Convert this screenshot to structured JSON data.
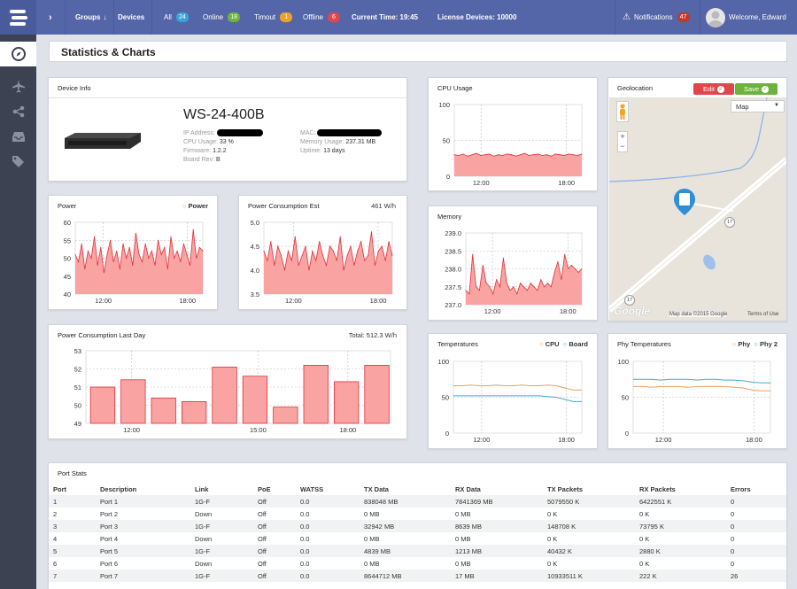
{
  "topbar": {
    "groups": "Groups",
    "devices": "Devices",
    "all_label": "All",
    "all_count": "24",
    "online_label": "Online",
    "online_count": "18",
    "timeout_label": "Timout",
    "timeout_count": "1",
    "offline_label": "Offline",
    "offline_count": "6",
    "current_time": "Current Time: 19:45",
    "license": "License Devices: 10000",
    "notifications_label": "Notifications",
    "notifications_count": "47",
    "welcome": "Welcome, Edward"
  },
  "page_title": "Statistics & Charts",
  "device_info": {
    "title": "Device Info",
    "model": "WS-24-400B",
    "ip_label": "IP Address:",
    "cpu_label": "CPU Usage:",
    "cpu_value": "33 %",
    "firmware_label": "Firmware:",
    "firmware_value": "1.2.2",
    "board_label": "Board Rev:",
    "board_value": "B",
    "mac_label": "MAC:",
    "memory_label": "Memory Usage:",
    "memory_value": "237.31 MB",
    "uptime_label": "Uptime:",
    "uptime_value": "13 days"
  },
  "power": {
    "title": "Power",
    "legend": "Power",
    "yticks": [
      "60",
      "55",
      "50",
      "45",
      "40"
    ],
    "xticks": [
      "12:00",
      "18:00"
    ]
  },
  "power_est": {
    "title": "Power Consumption Est",
    "value": "461 W/h",
    "yticks": [
      "5.0",
      "4.5",
      "4.0",
      "3.5"
    ],
    "xticks": [
      "12:00",
      "18:00"
    ]
  },
  "cpu": {
    "title": "CPU Usage",
    "yticks": [
      "100",
      "50",
      "0"
    ],
    "xticks": [
      "12:00",
      "18:00"
    ]
  },
  "memory": {
    "title": "Memory",
    "yticks": [
      "239.0",
      "238.5",
      "238.0",
      "237.5",
      "237.0"
    ],
    "xticks": [
      "12:00",
      "18:00"
    ]
  },
  "geo": {
    "title": "Geolocation",
    "edit": "Edit",
    "save": "Save",
    "map_type": "Map",
    "road_label": "17",
    "credit": "Map data ©2015 Google",
    "terms": "Terms of Use",
    "brand": "Google"
  },
  "power_day": {
    "title": "Power Consumption Last Day",
    "total": "Total: 512.3 W/h",
    "yticks": [
      "53",
      "52",
      "51",
      "50",
      "49"
    ],
    "xticks": [
      "12:00",
      "15:00",
      "18:00"
    ]
  },
  "temps": {
    "title": "Temperatures",
    "legend1": "CPU",
    "legend2": "Board",
    "yticks": [
      "100",
      "50",
      "0"
    ],
    "xticks": [
      "12:00",
      "18:00"
    ]
  },
  "phy": {
    "title": "Phy Temperatures",
    "legend1": "Phy",
    "legend2": "Phy 2",
    "yticks": [
      "100",
      "50",
      "0"
    ],
    "xticks": [
      "12:00",
      "18:00"
    ]
  },
  "colors": {
    "accent": "#5466a8",
    "fill": "#f9a3a3",
    "line": "#e0303a",
    "orange": "#f0a060",
    "blue": "#46a9d4"
  },
  "port_stats": {
    "title": "Port Stats",
    "headers": [
      "Port",
      "Description",
      "Link",
      "PoE",
      "WATSS",
      "TX Data",
      "RX Data",
      "TX Packets",
      "RX Packets",
      "Errors"
    ],
    "rows": [
      [
        "1",
        "Port 1",
        "1G-F",
        "Off",
        "0.0",
        "838048 MB",
        "7841369 MB",
        "5079550 K",
        "6422551 K",
        "0"
      ],
      [
        "2",
        "Port 2",
        "Down",
        "Off",
        "0.0",
        "0 MB",
        "0 MB",
        "0 K",
        "0 K",
        "0"
      ],
      [
        "3",
        "Port 3",
        "1G-F",
        "Off",
        "0.0",
        "32942 MB",
        "8639 MB",
        "148708 K",
        "73795 K",
        "0"
      ],
      [
        "4",
        "Port 4",
        "Down",
        "Off",
        "0.0",
        "0 MB",
        "0 MB",
        "0 K",
        "0 K",
        "0"
      ],
      [
        "5",
        "Port 5",
        "1G-F",
        "Off",
        "0.0",
        "4839 MB",
        "1213 MB",
        "40432 K",
        "2880 K",
        "0"
      ],
      [
        "6",
        "Port 6",
        "Down",
        "Off",
        "0.0",
        "0 MB",
        "0 MB",
        "0 K",
        "0 K",
        "0"
      ],
      [
        "7",
        "Port 7",
        "1G-F",
        "Off",
        "0.0",
        "8644712 MB",
        "17 MB",
        "10933511 K",
        "222 K",
        "26"
      ]
    ]
  },
  "chart_data": [
    {
      "type": "area",
      "title": "Power",
      "ylim": [
        40,
        60
      ],
      "series": [
        {
          "name": "Power",
          "values": [
            51,
            49,
            54,
            47,
            52,
            50,
            56,
            48,
            53,
            46,
            51,
            55,
            49,
            52,
            47,
            54,
            50,
            53,
            48,
            57,
            51,
            49,
            54,
            50,
            52,
            48,
            55,
            51,
            53,
            47,
            56,
            50,
            52,
            49,
            54,
            51,
            48,
            58,
            50,
            53,
            52
          ]
        }
      ]
    },
    {
      "type": "area",
      "title": "Power Consumption Est",
      "ylim": [
        3.5,
        5
      ],
      "values": [
        4.4,
        4.2,
        4.6,
        4.1,
        4.5,
        4.3,
        4.0,
        4.4,
        4.2,
        4.7,
        4.1,
        4.3,
        4.5,
        4.0,
        4.4,
        4.2,
        4.6,
        4.3,
        4.1,
        4.5,
        4.4,
        4.2,
        4.7,
        4.0,
        4.3,
        4.5,
        4.1,
        4.4,
        4.6,
        4.2,
        4.3,
        4.8,
        4.1,
        4.4,
        4.5,
        4.2,
        4.6,
        4.3
      ]
    },
    {
      "type": "area",
      "title": "CPU Usage",
      "ylim": [
        0,
        100
      ],
      "values": [
        30,
        29,
        31,
        28,
        30,
        32,
        29,
        30,
        31,
        28,
        30,
        29,
        31,
        30,
        28,
        30,
        32,
        29,
        30,
        31,
        29,
        30,
        28,
        31,
        30,
        29,
        31,
        30,
        29,
        31
      ]
    },
    {
      "type": "area",
      "title": "Memory",
      "ylim": [
        237,
        239
      ],
      "values": [
        237.4,
        237.3,
        238.4,
        237.5,
        237.4,
        238.1,
        237.6,
        237.5,
        237.3,
        237.7,
        237.5,
        238.3,
        237.6,
        237.4,
        237.5,
        237.3,
        237.6,
        237.5,
        237.4,
        237.6,
        237.5,
        237.4,
        237.7,
        237.5,
        237.6,
        237.5,
        237.9,
        238.2,
        237.7,
        238.4,
        238.0,
        238.1,
        238.0,
        237.9,
        238.0
      ]
    },
    {
      "type": "bar",
      "title": "Power Consumption Last Day",
      "ylim": [
        49,
        53
      ],
      "values": [
        51.0,
        51.4,
        50.4,
        50.2,
        52.1,
        51.6,
        49.9,
        52.2,
        51.3,
        52.2
      ]
    },
    {
      "type": "line",
      "title": "Temperatures",
      "ylim": [
        0,
        100
      ],
      "series": [
        {
          "name": "CPU",
          "values": [
            66,
            66,
            67,
            66,
            66,
            67,
            66,
            66,
            67,
            66,
            66,
            67,
            66,
            63,
            60,
            60
          ]
        },
        {
          "name": "Board",
          "values": [
            52,
            52,
            52,
            52,
            52,
            52,
            52,
            52,
            52,
            52,
            52,
            51,
            50,
            47,
            44,
            44
          ]
        }
      ]
    },
    {
      "type": "line",
      "title": "Phy Temperatures",
      "ylim": [
        0,
        100
      ],
      "series": [
        {
          "name": "Phy",
          "values": [
            65,
            65,
            64,
            65,
            65,
            65,
            64,
            65,
            65,
            65,
            65,
            64,
            63,
            60,
            59,
            59
          ]
        },
        {
          "name": "Phy 2",
          "values": [
            75,
            75,
            75,
            74,
            75,
            75,
            75,
            74,
            75,
            75,
            74,
            74,
            73,
            71,
            70,
            70
          ]
        }
      ]
    }
  ]
}
